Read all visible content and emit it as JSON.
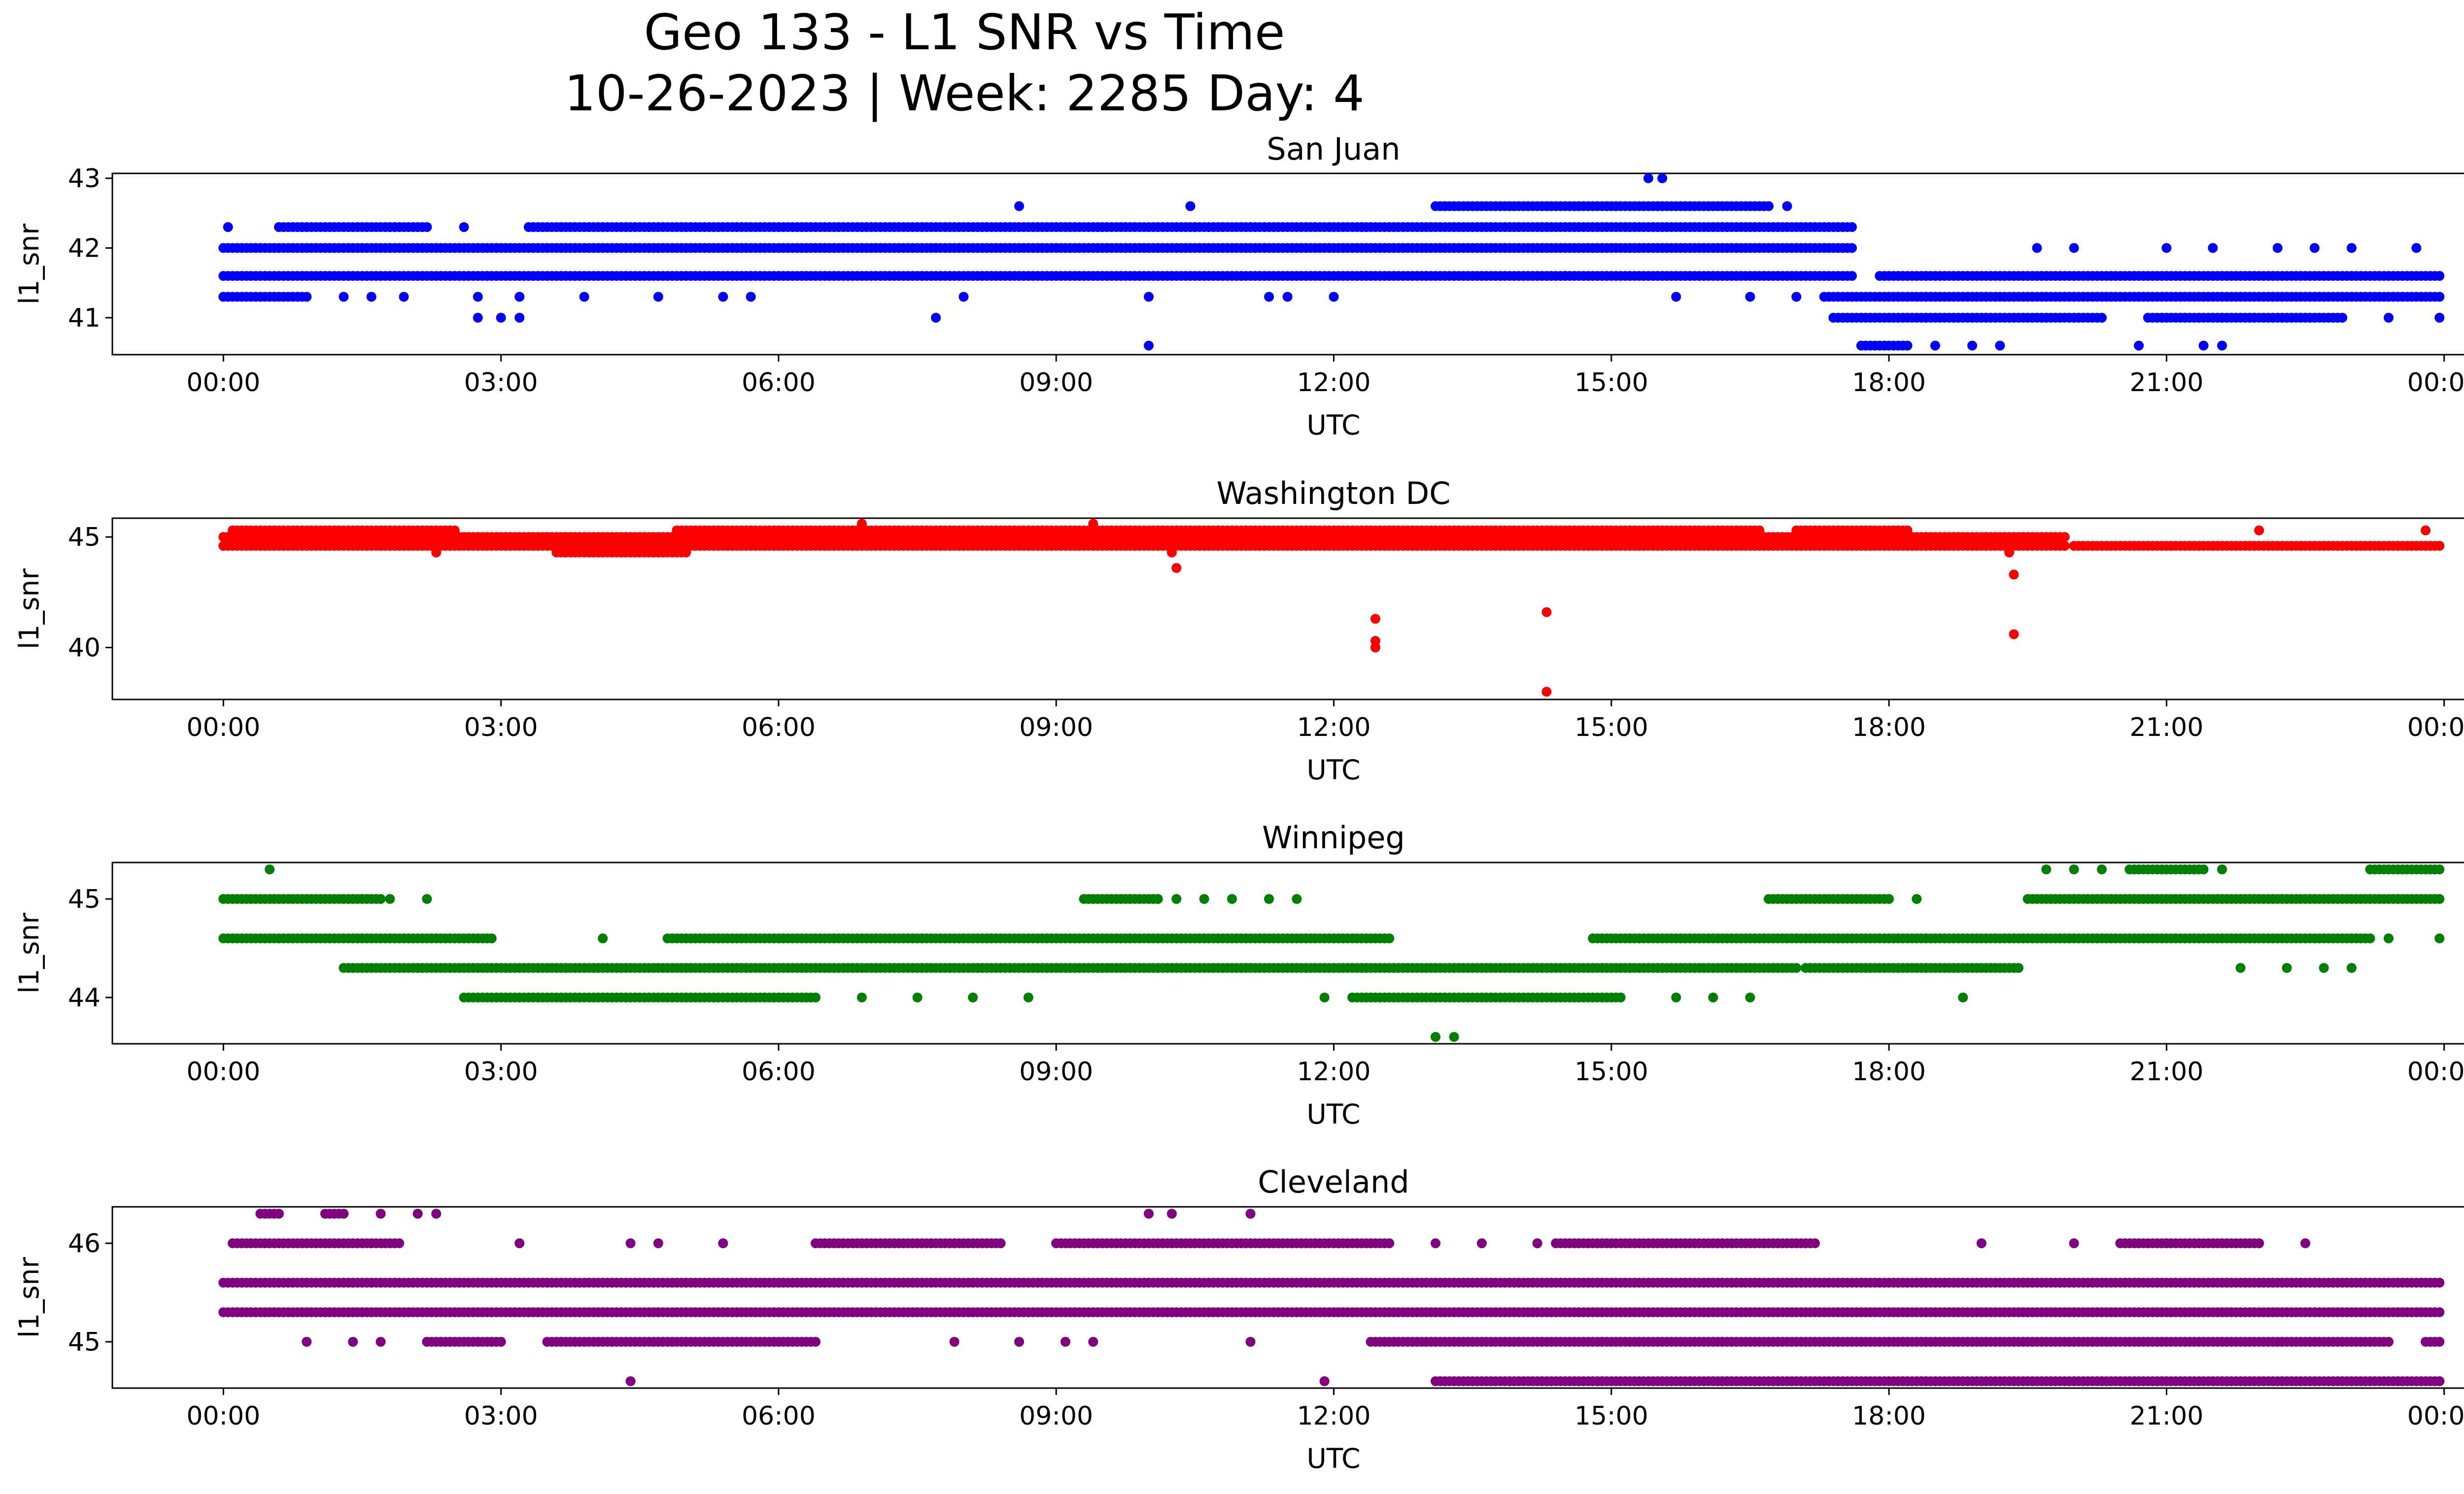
{
  "figure": {
    "title_line1": "Geo 133 - L1 SNR vs Time",
    "title_line2": "10-26-2023 | Week: 2285 Day: 4"
  },
  "chart_data": [
    {
      "type": "scatter",
      "title": "San Juan",
      "xlabel": "UTC",
      "ylabel": "l1_snr",
      "color": "#0000ff",
      "xlim": [
        -0.05,
        1.05
      ],
      "x_tick_labels": [
        "00:00",
        "03:00",
        "06:00",
        "09:00",
        "12:00",
        "15:00",
        "18:00",
        "21:00",
        "00:00"
      ],
      "ylim": [
        40.47,
        43.07
      ],
      "y_ticks": [
        41,
        42,
        43
      ],
      "bands": [
        {
          "y": 42.0,
          "ranges": [
            [
              0,
              17.6
            ]
          ]
        },
        {
          "y": 41.6,
          "ranges": [
            [
              0,
              17.6
            ],
            [
              17.9,
              24
            ]
          ]
        },
        {
          "y": 42.3,
          "ranges": [
            [
              0.6,
              2.2
            ],
            [
              3.3,
              17.6
            ]
          ]
        },
        {
          "y": 41.3,
          "ranges": [
            [
              0,
              0.9
            ],
            [
              17.3,
              24
            ]
          ]
        },
        {
          "y": 42.6,
          "ranges": [
            [
              13.1,
              16.7
            ]
          ]
        },
        {
          "y": 41.0,
          "ranges": [
            [
              17.4,
              20.3
            ],
            [
              20.8,
              22.9
            ]
          ]
        },
        {
          "y": 40.6,
          "ranges": [
            [
              17.7,
              18.2
            ]
          ]
        }
      ],
      "points": [
        [
          0.05,
          42.3
        ],
        [
          0.8,
          41.3
        ],
        [
          1.3,
          41.3
        ],
        [
          1.6,
          41.3
        ],
        [
          1.95,
          41.3
        ],
        [
          2.6,
          42.3
        ],
        [
          2.75,
          41.3
        ],
        [
          3.2,
          41.3
        ],
        [
          2.75,
          41.0
        ],
        [
          3.0,
          41.0
        ],
        [
          3.2,
          41.0
        ],
        [
          3.9,
          41.3
        ],
        [
          4.7,
          41.3
        ],
        [
          5.4,
          41.3
        ],
        [
          5.7,
          41.3
        ],
        [
          7.7,
          41.0
        ],
        [
          8.0,
          41.3
        ],
        [
          8.6,
          42.6
        ],
        [
          10.0,
          41.3
        ],
        [
          10.0,
          40.6
        ],
        [
          10.45,
          42.6
        ],
        [
          10.5,
          42.3
        ],
        [
          10.8,
          42.3
        ],
        [
          11.3,
          41.3
        ],
        [
          11.5,
          41.3
        ],
        [
          12.0,
          41.3
        ],
        [
          12.3,
          42.3
        ],
        [
          13.0,
          41.6
        ],
        [
          14.5,
          41.6
        ],
        [
          15.4,
          43.0
        ],
        [
          15.55,
          43.0
        ],
        [
          15.7,
          41.3
        ],
        [
          16.5,
          41.3
        ],
        [
          16.9,
          42.6
        ],
        [
          17.0,
          41.3
        ],
        [
          18.5,
          40.6
        ],
        [
          18.9,
          40.6
        ],
        [
          19.2,
          40.6
        ],
        [
          19.6,
          42.0
        ],
        [
          20.0,
          42.0
        ],
        [
          20.7,
          40.6
        ],
        [
          21.0,
          42.0
        ],
        [
          21.4,
          40.6
        ],
        [
          21.6,
          40.6
        ],
        [
          21.5,
          42.0
        ],
        [
          22.2,
          42.0
        ],
        [
          22.6,
          42.0
        ],
        [
          23.0,
          42.0
        ],
        [
          23.4,
          41.0
        ],
        [
          23.7,
          42.0
        ],
        [
          23.95,
          41.0
        ]
      ]
    },
    {
      "type": "scatter",
      "title": "Washington DC",
      "xlabel": "UTC",
      "ylabel": "l1_snr",
      "color": "#ff0000",
      "xlim": [
        -0.05,
        1.05
      ],
      "x_tick_labels": [
        "00:00",
        "03:00",
        "06:00",
        "09:00",
        "12:00",
        "15:00",
        "18:00",
        "21:00",
        "00:00"
      ],
      "ylim": [
        37.65,
        45.85
      ],
      "y_ticks": [
        40,
        45
      ],
      "bands": [
        {
          "y": 45.0,
          "ranges": [
            [
              0,
              19.9
            ]
          ]
        },
        {
          "y": 44.6,
          "ranges": [
            [
              0,
              19.9
            ],
            [
              20.0,
              24
            ]
          ]
        },
        {
          "y": 45.3,
          "ranges": [
            [
              0.1,
              2.5
            ],
            [
              4.9,
              16.6
            ],
            [
              17.0,
              18.2
            ]
          ]
        },
        {
          "y": 44.3,
          "ranges": [
            [
              3.6,
              5.0
            ]
          ]
        }
      ],
      "points": [
        [
          2.3,
          44.3
        ],
        [
          6.9,
          45.6
        ],
        [
          9.4,
          45.6
        ],
        [
          10.25,
          44.3
        ],
        [
          10.3,
          43.6
        ],
        [
          12.45,
          41.3
        ],
        [
          12.45,
          40.3
        ],
        [
          12.45,
          40.0
        ],
        [
          14.3,
          41.6
        ],
        [
          14.3,
          38.0
        ],
        [
          19.3,
          44.3
        ],
        [
          19.35,
          43.3
        ],
        [
          19.35,
          40.6
        ],
        [
          22.0,
          45.3
        ],
        [
          23.8,
          45.3
        ]
      ]
    },
    {
      "type": "scatter",
      "title": "Winnipeg",
      "xlabel": "UTC",
      "ylabel": "l1_snr",
      "color": "#008000",
      "xlim": [
        -0.05,
        1.05
      ],
      "x_tick_labels": [
        "00:00",
        "03:00",
        "06:00",
        "09:00",
        "12:00",
        "15:00",
        "18:00",
        "21:00",
        "00:00"
      ],
      "ylim": [
        43.53,
        45.37
      ],
      "y_ticks": [
        44,
        45
      ],
      "bands": [
        {
          "y": 45.0,
          "ranges": [
            [
              0,
              1.7
            ],
            [
              9.3,
              10.1
            ],
            [
              16.7,
              18.0
            ],
            [
              19.5,
              24
            ]
          ]
        },
        {
          "y": 44.6,
          "ranges": [
            [
              0,
              2.9
            ],
            [
              4.8,
              8.3
            ],
            [
              8.3,
              12.6
            ],
            [
              14.8,
              23.2
            ]
          ]
        },
        {
          "y": 44.3,
          "ranges": [
            [
              1.3,
              17.0
            ],
            [
              17.1,
              19.4
            ]
          ]
        },
        {
          "y": 44.0,
          "ranges": [
            [
              2.6,
              6.4
            ],
            [
              12.2,
              15.1
            ]
          ]
        },
        {
          "y": 45.3,
          "ranges": [
            [
              20.6,
              21.4
            ],
            [
              23.2,
              24
            ]
          ]
        }
      ],
      "points": [
        [
          0.5,
          45.3
        ],
        [
          1.8,
          45.0
        ],
        [
          2.2,
          45.0
        ],
        [
          4.1,
          44.6
        ],
        [
          6.9,
          44.0
        ],
        [
          7.5,
          44.0
        ],
        [
          8.1,
          44.0
        ],
        [
          8.7,
          44.0
        ],
        [
          10.3,
          45.0
        ],
        [
          10.6,
          45.0
        ],
        [
          10.9,
          45.0
        ],
        [
          11.3,
          45.0
        ],
        [
          11.6,
          45.0
        ],
        [
          11.9,
          44.0
        ],
        [
          13.1,
          43.6
        ],
        [
          13.3,
          43.6
        ],
        [
          15.7,
          44.0
        ],
        [
          16.1,
          44.0
        ],
        [
          16.5,
          44.0
        ],
        [
          18.3,
          45.0
        ],
        [
          18.8,
          44.0
        ],
        [
          19.7,
          45.3
        ],
        [
          20.0,
          45.3
        ],
        [
          20.3,
          45.3
        ],
        [
          21.6,
          45.3
        ],
        [
          21.8,
          44.3
        ],
        [
          22.3,
          44.3
        ],
        [
          22.7,
          44.3
        ],
        [
          23.0,
          44.3
        ],
        [
          23.4,
          44.6
        ],
        [
          23.95,
          44.6
        ]
      ]
    },
    {
      "type": "scatter",
      "title": "Cleveland",
      "xlabel": "UTC",
      "ylabel": "l1_snr",
      "color": "#800080",
      "xlim": [
        -0.05,
        1.05
      ],
      "x_tick_labels": [
        "00:00",
        "03:00",
        "06:00",
        "09:00",
        "12:00",
        "15:00",
        "18:00",
        "21:00",
        "00:00"
      ],
      "ylim": [
        44.53,
        46.37
      ],
      "y_ticks": [
        45,
        46
      ],
      "bands": [
        {
          "y": 45.6,
          "ranges": [
            [
              0,
              24
            ]
          ]
        },
        {
          "y": 45.3,
          "ranges": [
            [
              0,
              24
            ]
          ]
        },
        {
          "y": 46.0,
          "ranges": [
            [
              0.1,
              1.9
            ],
            [
              6.4,
              8.4
            ],
            [
              9.0,
              12.6
            ],
            [
              14.4,
              17.2
            ],
            [
              20.5,
              22.0
            ]
          ]
        },
        {
          "y": 45.0,
          "ranges": [
            [
              2.2,
              3.0
            ],
            [
              3.5,
              6.4
            ],
            [
              12.4,
              23.4
            ],
            [
              23.8,
              24
            ]
          ]
        },
        {
          "y": 44.6,
          "ranges": [
            [
              13.1,
              24
            ]
          ]
        },
        {
          "y": 46.3,
          "ranges": [
            [
              0.4,
              0.6
            ],
            [
              1.1,
              1.3
            ]
          ]
        }
      ],
      "points": [
        [
          1.7,
          46.3
        ],
        [
          2.1,
          46.3
        ],
        [
          2.3,
          46.3
        ],
        [
          3.2,
          46.0
        ],
        [
          4.4,
          46.0
        ],
        [
          4.7,
          46.0
        ],
        [
          5.4,
          46.0
        ],
        [
          0.9,
          45.0
        ],
        [
          1.4,
          45.0
        ],
        [
          1.7,
          45.0
        ],
        [
          4.4,
          44.6
        ],
        [
          7.9,
          45.0
        ],
        [
          8.6,
          45.0
        ],
        [
          9.1,
          45.0
        ],
        [
          9.4,
          45.0
        ],
        [
          10.0,
          46.3
        ],
        [
          10.25,
          46.3
        ],
        [
          11.1,
          46.3
        ],
        [
          11.1,
          45.0
        ],
        [
          11.9,
          44.6
        ],
        [
          13.1,
          46.0
        ],
        [
          13.6,
          46.0
        ],
        [
          14.2,
          46.0
        ],
        [
          19.0,
          46.0
        ],
        [
          20.0,
          46.0
        ],
        [
          21.0,
          46.0
        ],
        [
          22.5,
          46.0
        ],
        [
          23.95,
          44.6
        ]
      ]
    }
  ]
}
